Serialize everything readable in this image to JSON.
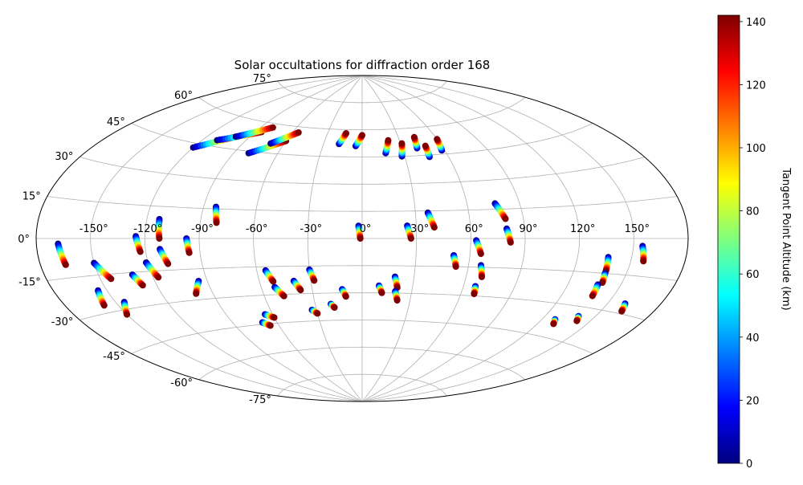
{
  "chart_data": {
    "type": "scatter",
    "projection": "aitoff",
    "title": "Solar occultations for diffraction order 168",
    "grid": true,
    "lon_ticks": [
      "-150°",
      "-120°",
      "-90°",
      "-60°",
      "-30°",
      "0°",
      "30°",
      "60°",
      "90°",
      "120°",
      "150°"
    ],
    "lat_ticks": [
      "-75°",
      "-60°",
      "-45°",
      "-30°",
      "-15°",
      "0°",
      "15°",
      "30°",
      "45°",
      "60°",
      "75°"
    ],
    "colorbar": {
      "label": "Tangent Point Altitude (km)",
      "colormap": "jet",
      "min": 0,
      "max": 142,
      "ticks": [
        "0",
        "20",
        "40",
        "60",
        "80",
        "100",
        "120",
        "140"
      ],
      "colors": [
        "#00007f",
        "#0000ff",
        "#007fff",
        "#00ffff",
        "#7fff7f",
        "#ffff00",
        "#ff7f00",
        "#ff0000",
        "#7f0000"
      ]
    },
    "altitude_range_km": [
      0,
      142
    ],
    "tracks": [
      {
        "lon": [
          -168,
          -166
        ],
        "lat": [
          -2,
          -10
        ]
      },
      {
        "lon": [
          -150,
          -144
        ],
        "lat": [
          -10,
          -17
        ]
      },
      {
        "lon": [
          -131,
          -128
        ],
        "lat": [
          -16,
          -21
        ]
      },
      {
        "lon": [
          -125,
          -123
        ],
        "lat": [
          1,
          -6
        ]
      },
      {
        "lon": [
          -121,
          -117
        ],
        "lat": [
          -11,
          -18
        ]
      },
      {
        "lon": [
          -113,
          -112
        ],
        "lat": [
          9,
          0
        ]
      },
      {
        "lon": [
          -112,
          -109
        ],
        "lat": [
          -5,
          -12
        ]
      },
      {
        "lon": [
          -97,
          -96
        ],
        "lat": [
          0,
          -7
        ]
      },
      {
        "lon": [
          -83,
          -81
        ],
        "lat": [
          16,
          8
        ]
      },
      {
        "lon": [
          -55,
          -52
        ],
        "lat": [
          -17,
          -23
        ]
      },
      {
        "lon": [
          -52,
          -48
        ],
        "lat": [
          -26,
          -31
        ]
      },
      {
        "lon": [
          -40,
          -37
        ],
        "lat": [
          -23,
          -28
        ]
      },
      {
        "lon": [
          -30,
          -28
        ],
        "lat": [
          -17,
          -23
        ]
      },
      {
        "lon": [
          -2,
          -1
        ],
        "lat": [
          7,
          0
        ]
      },
      {
        "lon": [
          25,
          27
        ],
        "lat": [
          7,
          0
        ]
      },
      {
        "lon": [
          37,
          40
        ],
        "lat": [
          14,
          6
        ]
      },
      {
        "lon": [
          51,
          53
        ],
        "lat": [
          -9,
          -15
        ]
      },
      {
        "lon": [
          63,
          66
        ],
        "lat": [
          -1,
          -8
        ]
      },
      {
        "lon": [
          67,
          69
        ],
        "lat": [
          -14,
          -20
        ]
      },
      {
        "lon": [
          67,
          68
        ],
        "lat": [
          -25,
          -29
        ]
      },
      {
        "lon": [
          76,
          80
        ],
        "lat": [
          18,
          10
        ]
      },
      {
        "lon": [
          80,
          82
        ],
        "lat": [
          5,
          -2
        ]
      },
      {
        "lon": [
          137,
          138
        ],
        "lat": [
          -8,
          -14
        ]
      },
      {
        "lon": [
          138,
          139
        ],
        "lat": [
          -15,
          -19
        ]
      },
      {
        "lon": [
          137,
          138
        ],
        "lat": [
          -20,
          -25
        ]
      },
      {
        "lon": [
          155,
          157
        ],
        "lat": [
          -3,
          -9
        ]
      },
      {
        "lon": [
          -120,
          -100
        ],
        "lat": [
          43,
          51
        ]
      },
      {
        "lon": [
          -110,
          -85
        ],
        "lat": [
          48,
          55
        ]
      },
      {
        "lon": [
          -100,
          -80
        ],
        "lat": [
          51,
          58
        ]
      },
      {
        "lon": [
          -80,
          -60
        ],
        "lat": [
          44,
          52
        ]
      },
      {
        "lon": [
          -70,
          -55
        ],
        "lat": [
          50,
          57
        ]
      },
      {
        "lon": [
          -18,
          -14
        ],
        "lat": [
          52,
          58
        ]
      },
      {
        "lon": [
          -5,
          0
        ],
        "lat": [
          51,
          57
        ]
      },
      {
        "lon": [
          17,
          21
        ],
        "lat": [
          47,
          54
        ]
      },
      {
        "lon": [
          28,
          31
        ],
        "lat": [
          45,
          52
        ]
      },
      {
        "lon": [
          41,
          43
        ],
        "lat": [
          49,
          55
        ]
      },
      {
        "lon": [
          47,
          48
        ],
        "lat": [
          44,
          50
        ]
      },
      {
        "lon": [
          58,
          60
        ],
        "lat": [
          47,
          53
        ]
      },
      {
        "lon": [
          -145,
          -150
        ],
        "lat": [
          -27,
          -32
        ]
      },
      {
        "lon": [
          -155,
          -158
        ],
        "lat": [
          -21,
          -27
        ]
      },
      {
        "lon": [
          -95,
          -100
        ],
        "lat": [
          -21,
          -27
        ]
      },
      {
        "lon": [
          -70,
          -66
        ],
        "lat": [
          -44,
          -46
        ]
      },
      {
        "lon": [
          -65,
          -60
        ],
        "lat": [
          -40,
          -42
        ]
      },
      {
        "lon": [
          -20,
          -18
        ],
        "lat": [
          -36,
          -38
        ]
      },
      {
        "lon": [
          -33,
          -30
        ],
        "lat": [
          -39,
          -41
        ]
      },
      {
        "lon": [
          -12,
          -10
        ],
        "lat": [
          -28,
          -32
        ]
      },
      {
        "lon": [
          10,
          12
        ],
        "lat": [
          -26,
          -30
        ]
      },
      {
        "lon": [
          19,
          21
        ],
        "lat": [
          -21,
          -27
        ]
      },
      {
        "lon": [
          20,
          22
        ],
        "lat": [
          -29,
          -34
        ]
      },
      {
        "lon": [
          160,
          162
        ],
        "lat": [
          -26,
          -29
        ]
      },
      {
        "lon": [
          128,
          130
        ],
        "lat": [
          -37,
          -39
        ]
      },
      {
        "lon": [
          140,
          142
        ],
        "lat": [
          -34,
          -36
        ]
      }
    ]
  }
}
